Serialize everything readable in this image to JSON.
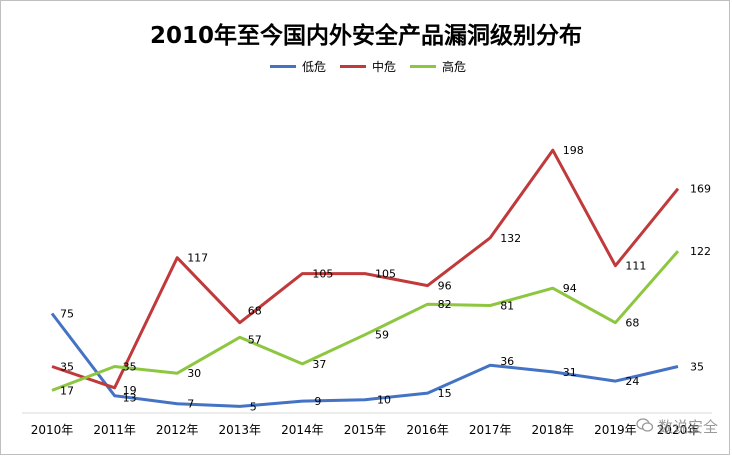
{
  "chart_data": {
    "type": "line",
    "title": "2010年至今国内外安全产品漏洞级别分布",
    "categories": [
      "2010年",
      "2011年",
      "2012年",
      "2013年",
      "2014年",
      "2015年",
      "2016年",
      "2017年",
      "2018年",
      "2019年",
      "2020年"
    ],
    "series": [
      {
        "name": "低危",
        "color": "#4472c4",
        "values": [
          75,
          13,
          7,
          5,
          9,
          10,
          15,
          36,
          31,
          24,
          35
        ]
      },
      {
        "name": "中危",
        "color": "#c0393b",
        "values": [
          35,
          19,
          117,
          68,
          105,
          105,
          96,
          132,
          198,
          111,
          169
        ]
      },
      {
        "name": "高危",
        "color": "#8dc63f",
        "values": [
          17,
          35,
          30,
          57,
          37,
          59,
          82,
          81,
          94,
          68,
          122
        ]
      }
    ],
    "ylim": [
      0,
      220
    ],
    "legend": "top-center",
    "grid": false
  },
  "watermark": {
    "text": "数说安全"
  }
}
